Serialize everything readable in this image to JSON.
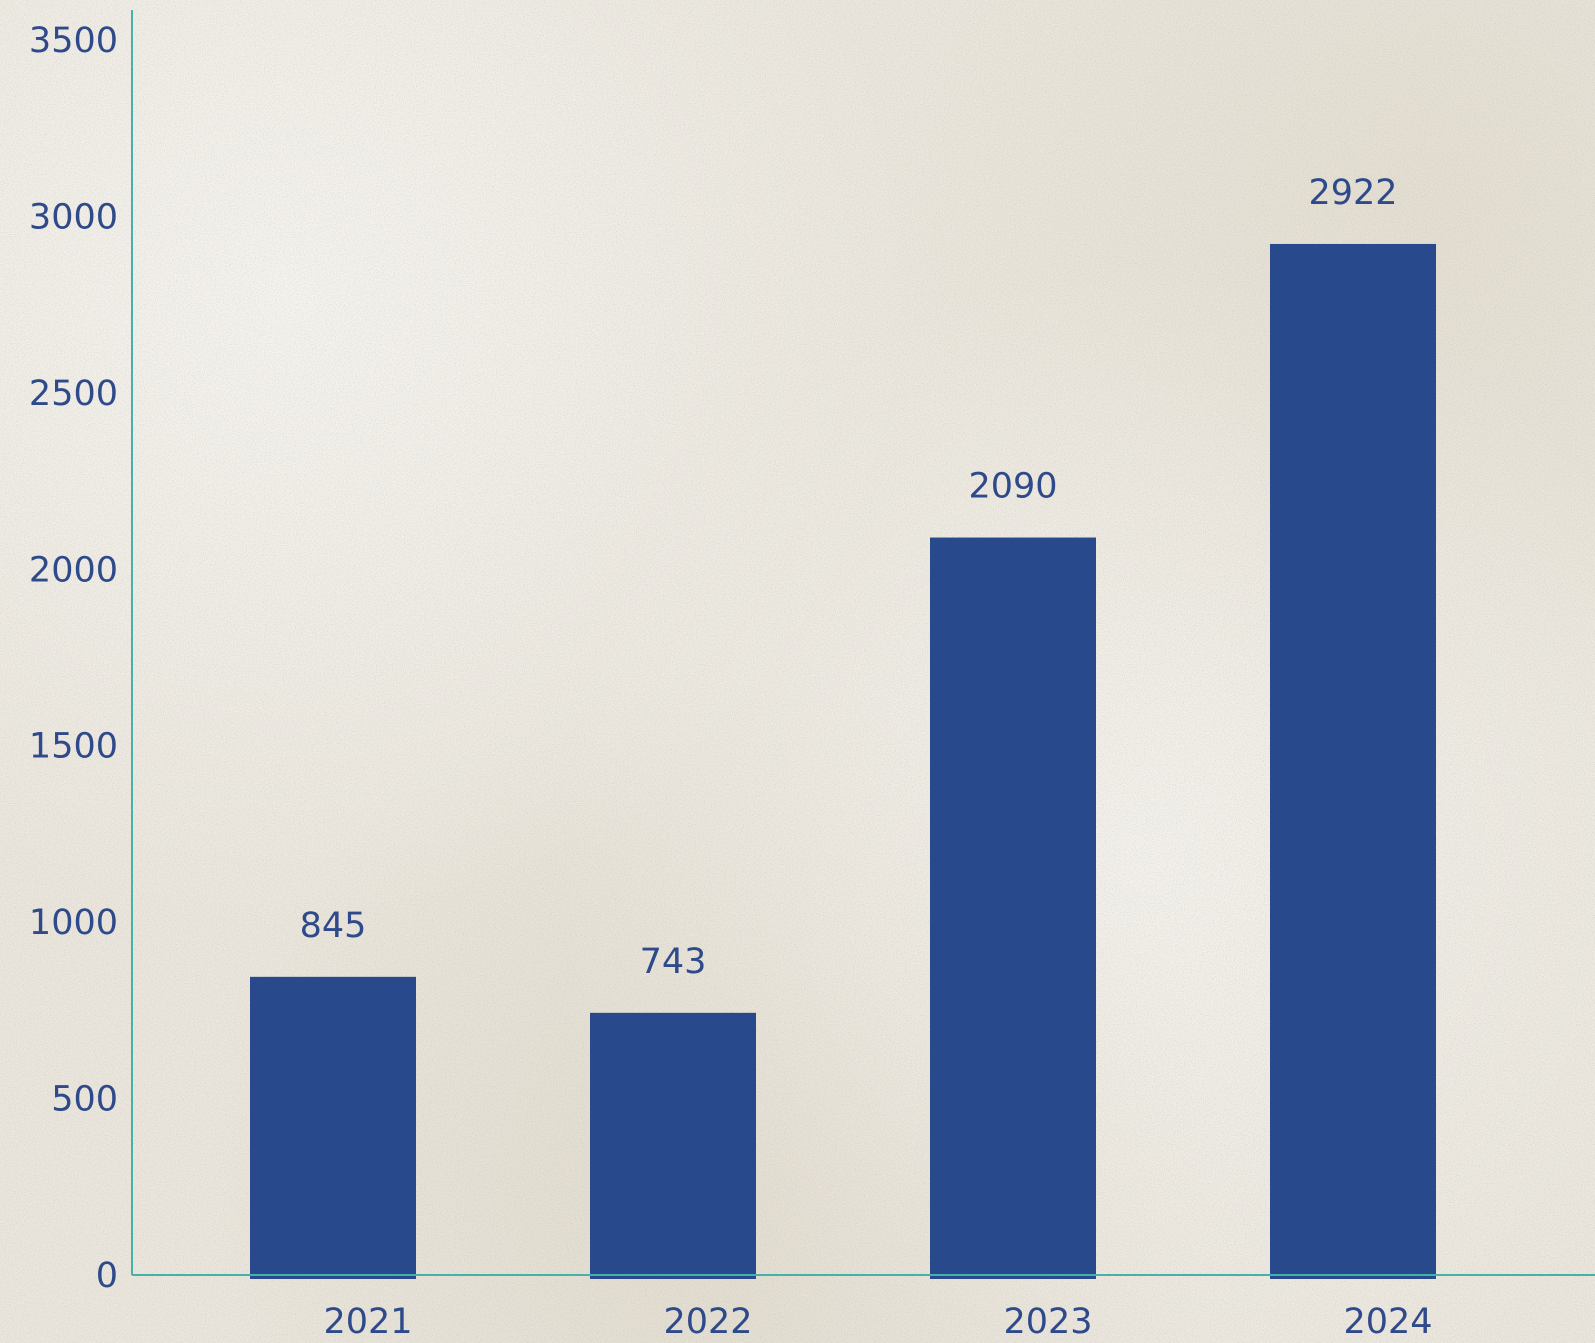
{
  "chart_data": {
    "type": "bar",
    "title": "",
    "xlabel": "",
    "ylabel": "",
    "categories": [
      "2021",
      "2022",
      "2023",
      "2024"
    ],
    "values": [
      845,
      743,
      2090,
      2922
    ],
    "data_labels": [
      "845",
      "743",
      "2090",
      "2922"
    ],
    "ylim": [
      0,
      3500
    ],
    "yticks": [
      "0",
      "500",
      "1000",
      "1500",
      "2000",
      "2500",
      "3000",
      "3500"
    ],
    "grid": false,
    "legend": "none"
  },
  "colors": {
    "bar": "#284a8c",
    "axis": "#46b0aa",
    "text": "#2f4a8a",
    "background": "#ebe7de"
  }
}
